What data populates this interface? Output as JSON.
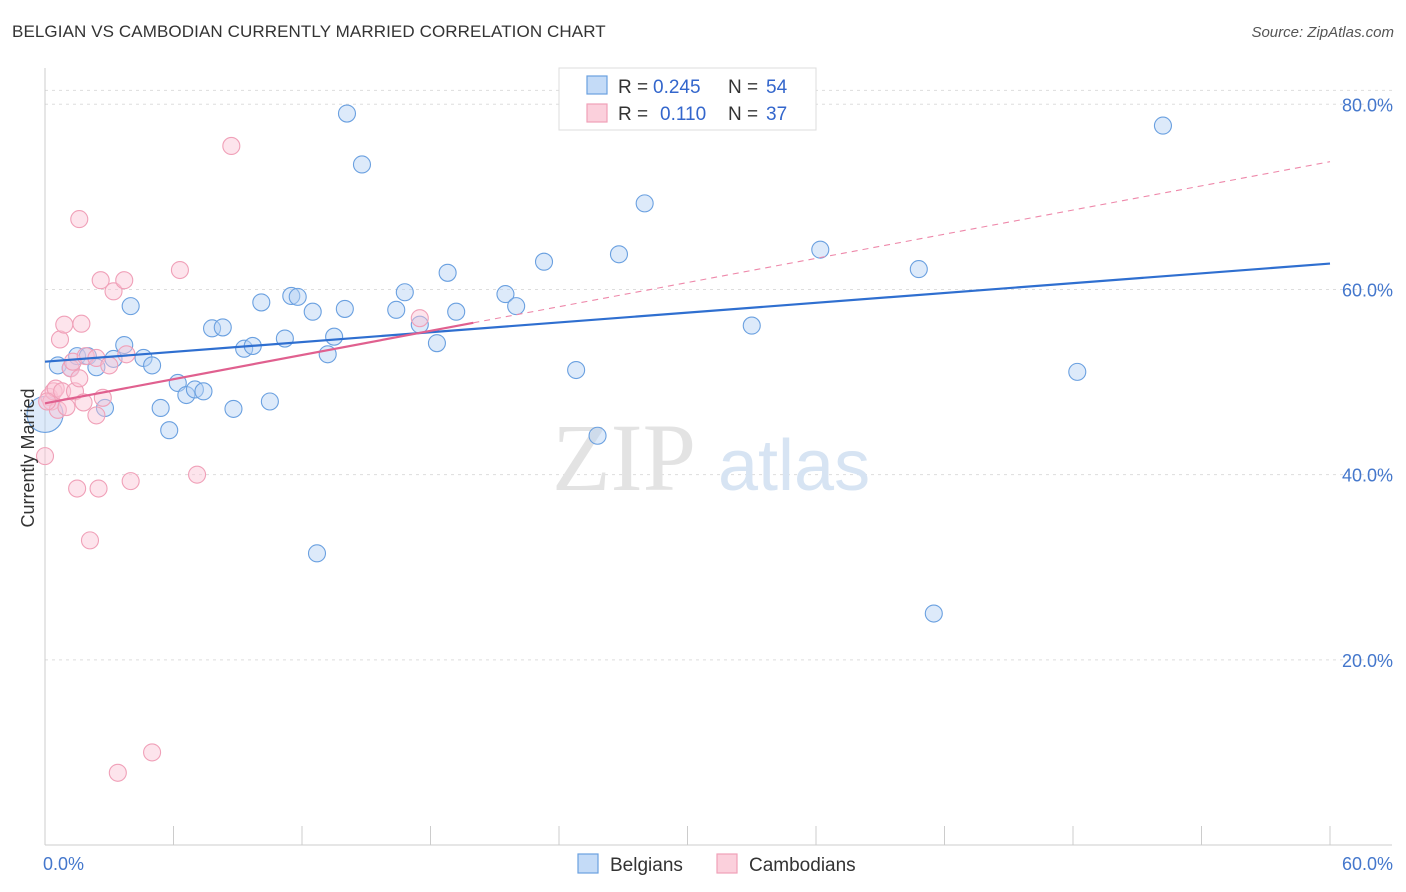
{
  "header": {
    "title": "BELGIAN VS CAMBODIAN CURRENTLY MARRIED CORRELATION CHART",
    "source": "Source: ZipAtlas.com"
  },
  "watermark": {
    "zip": "ZIP",
    "atlas": "atlas"
  },
  "legend": {
    "rows": [
      {
        "r_label": "R =",
        "r_value": "0.245",
        "n_label": "N =",
        "n_value": "54",
        "color": "#6aa0e0"
      },
      {
        "r_label": "R =",
        "r_value": "0.110",
        "n_label": "N =",
        "n_value": "37",
        "color": "#f0a0b8"
      }
    ]
  },
  "bottom_legend": {
    "items": [
      "Belgians",
      "Cambodians"
    ]
  },
  "chart_data": {
    "type": "scatter",
    "title": "BELGIAN VS CAMBODIAN CURRENTLY MARRIED CORRELATION CHART",
    "xlabel": "",
    "ylabel": "Currently Married",
    "xlim": [
      0,
      60
    ],
    "ylim": [
      0,
      85
    ],
    "x_tick_labels": [
      "0.0%",
      "60.0%"
    ],
    "y_ticks": [
      20,
      40,
      60,
      80
    ],
    "y_tick_labels": [
      "20.0%",
      "40.0%",
      "60.0%",
      "80.0%"
    ],
    "grid": "horizontal dashed",
    "legend_position": "top-center",
    "series": [
      {
        "name": "Belgians",
        "color": "#6aa0e0",
        "trend": {
          "x": [
            0,
            60
          ],
          "y": [
            52.2,
            62.8
          ],
          "style": "solid"
        },
        "points": [
          [
            0.0,
            46.5
          ],
          [
            0.6,
            51.8
          ],
          [
            1.2,
            51.5
          ],
          [
            1.5,
            52.8
          ],
          [
            2.0,
            52.8
          ],
          [
            2.4,
            51.6
          ],
          [
            2.8,
            47.2
          ],
          [
            3.2,
            52.5
          ],
          [
            3.7,
            54.0
          ],
          [
            4.0,
            58.2
          ],
          [
            4.6,
            52.6
          ],
          [
            5.0,
            51.8
          ],
          [
            5.4,
            47.2
          ],
          [
            5.8,
            44.8
          ],
          [
            6.2,
            49.9
          ],
          [
            6.6,
            48.6
          ],
          [
            7.0,
            49.2
          ],
          [
            7.4,
            49.0
          ],
          [
            7.8,
            55.8
          ],
          [
            8.3,
            55.9
          ],
          [
            8.8,
            47.1
          ],
          [
            9.3,
            53.6
          ],
          [
            9.7,
            53.9
          ],
          [
            10.1,
            58.6
          ],
          [
            10.5,
            47.9
          ],
          [
            11.2,
            54.7
          ],
          [
            11.5,
            59.3
          ],
          [
            11.8,
            59.2
          ],
          [
            12.5,
            57.6
          ],
          [
            12.7,
            31.5
          ],
          [
            13.2,
            53.0
          ],
          [
            13.5,
            54.9
          ],
          [
            14.0,
            57.9
          ],
          [
            14.1,
            79.0
          ],
          [
            14.8,
            73.5
          ],
          [
            16.4,
            57.8
          ],
          [
            16.8,
            59.7
          ],
          [
            17.5,
            56.2
          ],
          [
            18.3,
            54.2
          ],
          [
            18.8,
            61.8
          ],
          [
            19.2,
            57.6
          ],
          [
            21.5,
            59.5
          ],
          [
            22.0,
            58.2
          ],
          [
            23.3,
            63.0
          ],
          [
            24.8,
            51.3
          ],
          [
            25.8,
            44.2
          ],
          [
            26.8,
            63.8
          ],
          [
            28.0,
            69.3
          ],
          [
            33.0,
            56.1
          ],
          [
            36.2,
            64.3
          ],
          [
            40.8,
            62.2
          ],
          [
            41.5,
            25.0
          ],
          [
            48.2,
            51.1
          ],
          [
            52.2,
            77.7
          ]
        ]
      },
      {
        "name": "Cambodians",
        "color": "#f0a0b8",
        "trend": {
          "x": [
            0,
            20
          ],
          "y": [
            47.7,
            56.4
          ],
          "style": "solid",
          "extension_x": [
            20,
            60
          ],
          "extension_y": [
            56.4,
            73.8
          ]
        },
        "points": [
          [
            0.0,
            42.0
          ],
          [
            0.2,
            48.4
          ],
          [
            0.3,
            47.9
          ],
          [
            0.4,
            49.0
          ],
          [
            0.5,
            49.3
          ],
          [
            0.6,
            47.0
          ],
          [
            0.7,
            54.6
          ],
          [
            0.8,
            49.0
          ],
          [
            0.9,
            56.2
          ],
          [
            1.0,
            47.3
          ],
          [
            1.2,
            51.5
          ],
          [
            1.3,
            52.2
          ],
          [
            1.4,
            49.0
          ],
          [
            1.5,
            38.5
          ],
          [
            1.6,
            50.4
          ],
          [
            1.6,
            67.6
          ],
          [
            1.7,
            56.3
          ],
          [
            1.8,
            47.8
          ],
          [
            1.9,
            52.8
          ],
          [
            2.1,
            32.9
          ],
          [
            2.4,
            52.6
          ],
          [
            2.4,
            46.4
          ],
          [
            2.5,
            38.5
          ],
          [
            2.6,
            61.0
          ],
          [
            2.7,
            48.3
          ],
          [
            3.0,
            51.8
          ],
          [
            3.2,
            59.8
          ],
          [
            3.4,
            7.8
          ],
          [
            3.7,
            61.0
          ],
          [
            3.8,
            53.0
          ],
          [
            4.0,
            39.3
          ],
          [
            5.0,
            10.0
          ],
          [
            6.3,
            62.1
          ],
          [
            7.1,
            40.0
          ],
          [
            8.7,
            75.5
          ],
          [
            17.5,
            56.9
          ],
          [
            0.1,
            47.9
          ]
        ]
      }
    ]
  }
}
